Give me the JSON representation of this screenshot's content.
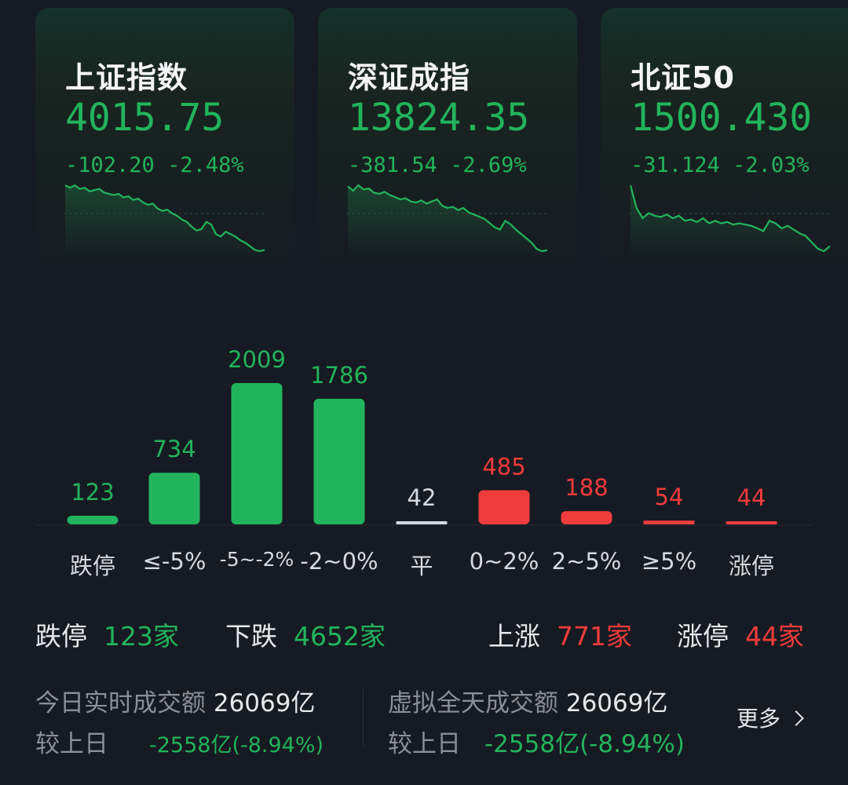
{
  "indices": [
    {
      "name": "上证指数",
      "price": "4015.75",
      "change": "-102.20",
      "pct": "-2.48%",
      "series": [
        100,
        98,
        100,
        97,
        98,
        95,
        96,
        97,
        94,
        93,
        92,
        93,
        90,
        91,
        88,
        89,
        86,
        84,
        85,
        81,
        79,
        80,
        77,
        75,
        72,
        70,
        66,
        63,
        64,
        70,
        68,
        60,
        58,
        62,
        60,
        58,
        55,
        53,
        50,
        47,
        46,
        47
      ]
    },
    {
      "name": "深证成指",
      "price": "13824.35",
      "change": "-381.54",
      "pct": "-2.69%",
      "series": [
        100,
        96,
        101,
        97,
        98,
        94,
        93,
        95,
        92,
        90,
        88,
        89,
        86,
        85,
        87,
        84,
        86,
        88,
        82,
        80,
        81,
        78,
        80,
        76,
        74,
        72,
        70,
        66,
        62,
        60,
        68,
        65,
        60,
        56,
        52,
        48,
        42,
        40,
        41
      ]
    },
    {
      "name": "北证50",
      "price": "1500.430",
      "change": "-31.124",
      "pct": "-2.03%",
      "series": [
        100,
        82,
        74,
        78,
        76,
        75,
        77,
        74,
        76,
        72,
        73,
        71,
        74,
        70,
        72,
        70,
        71,
        69,
        70,
        69,
        68,
        66,
        64,
        72,
        70,
        66,
        68,
        65,
        62,
        60,
        55,
        50,
        48,
        52
      ]
    }
  ],
  "distribution": [
    {
      "label": "跌停",
      "value": "123",
      "color": "#22b45c"
    },
    {
      "label": "≤-5%",
      "value": "734",
      "color": "#22b45c"
    },
    {
      "label": "-5~-2%",
      "value": "2009",
      "color": "#22b45c"
    },
    {
      "label": "-2~0%",
      "value": "1786",
      "color": "#22b45c"
    },
    {
      "label": "平",
      "value": "42",
      "color": "#d6d9de"
    },
    {
      "label": "0~2%",
      "value": "485",
      "color": "#f03c3c"
    },
    {
      "label": "2~5%",
      "value": "188",
      "color": "#f03c3c"
    },
    {
      "label": "≥5%",
      "value": "54",
      "color": "#f03c3c"
    },
    {
      "label": "涨停",
      "value": "44",
      "color": "#f03c3c"
    }
  ],
  "stats": {
    "limit_down_label": "跌停",
    "limit_down_value": "123家",
    "down_label": "下跌",
    "down_value": "4652家",
    "up_label": "上涨",
    "up_value": "771家",
    "limit_up_label": "涨停",
    "limit_up_value": "44家"
  },
  "volume": {
    "today_label": "今日实时成交额",
    "today_value": "26069亿",
    "compare_label_1": "较上日",
    "compare_value_1": "-2558亿(-8.94%)",
    "virtual_label": "虚拟全天成交额",
    "virtual_value": "26069亿",
    "compare_label_2": "较上日",
    "compare_value_2": "-2558亿(-8.94%)",
    "more_label": "更多"
  },
  "colors": {
    "down": "#22b45c",
    "up": "#f03c3c",
    "flat": "#d6d9de",
    "background": "#161a22"
  }
}
